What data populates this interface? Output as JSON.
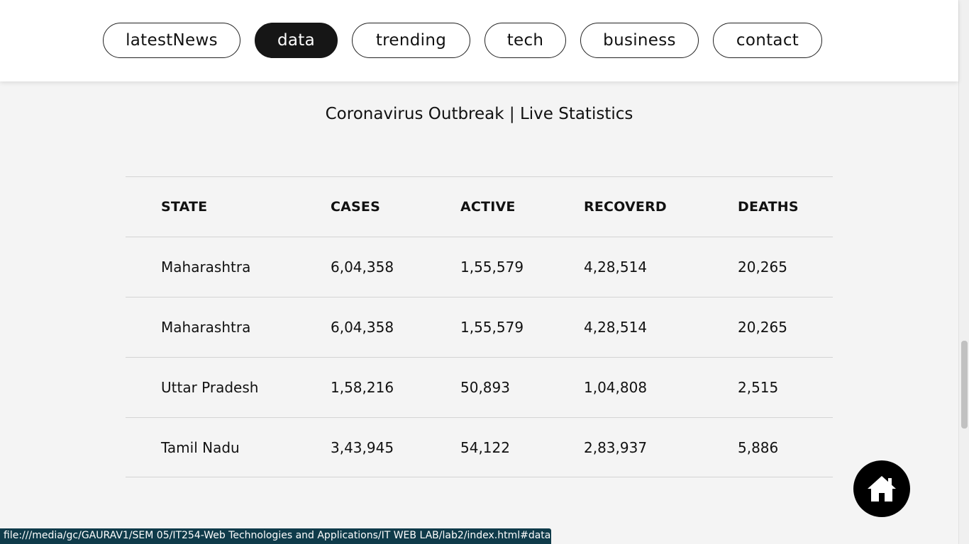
{
  "nav": {
    "items": [
      {
        "label": "latestNews",
        "active": false
      },
      {
        "label": "data",
        "active": true
      },
      {
        "label": "trending",
        "active": false
      },
      {
        "label": "tech",
        "active": false
      },
      {
        "label": "business",
        "active": false
      },
      {
        "label": "contact",
        "active": false
      }
    ]
  },
  "page": {
    "title": "Coronavirus Outbreak | Live Statistics"
  },
  "table": {
    "headers": [
      "STATE",
      "CASES",
      "ACTIVE",
      "RECOVERD",
      "DEATHS"
    ],
    "rows": [
      [
        "Maharashtra",
        "6,04,358",
        "1,55,579",
        "4,28,514",
        "20,265"
      ],
      [
        "Maharashtra",
        "6,04,358",
        "1,55,579",
        "4,28,514",
        "20,265"
      ],
      [
        "Uttar Pradesh",
        "1,58,216",
        "50,893",
        "1,04,808",
        "2,515"
      ],
      [
        "Tamil Nadu",
        "3,43,945",
        "54,122",
        "2,83,937",
        "5,886"
      ]
    ]
  },
  "home_button": {
    "icon": "home-icon"
  },
  "status_bar": {
    "url": "file:///media/gc/GAURAV1/SEM 05/IT254-Web Technologies and Applications/IT WEB LAB/lab2/index.html#data"
  },
  "colors": {
    "active_pill": "#161616",
    "page_bg": "#f4f4f4",
    "status_bar_bg": "#0f3b4a"
  }
}
